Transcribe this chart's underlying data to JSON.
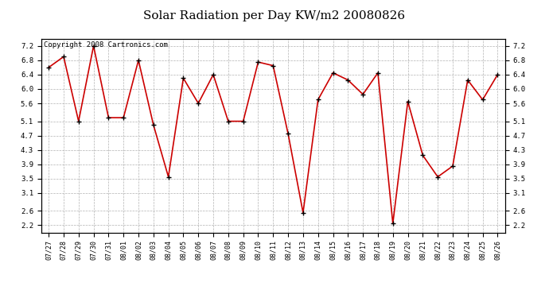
{
  "title": "Solar Radiation per Day KW/m2 20080826",
  "copyright_text": "Copyright 2008 Cartronics.com",
  "dates": [
    "07/27",
    "07/28",
    "07/29",
    "07/30",
    "07/31",
    "08/01",
    "08/02",
    "08/03",
    "08/04",
    "08/05",
    "08/06",
    "08/07",
    "08/08",
    "08/09",
    "08/10",
    "08/11",
    "08/12",
    "08/13",
    "08/14",
    "08/15",
    "08/16",
    "08/17",
    "08/18",
    "08/19",
    "08/20",
    "08/21",
    "08/22",
    "08/23",
    "08/24",
    "08/25",
    "08/26"
  ],
  "values": [
    6.6,
    6.9,
    5.1,
    7.2,
    5.2,
    5.2,
    6.8,
    5.0,
    3.55,
    6.3,
    5.6,
    6.4,
    5.1,
    5.1,
    6.75,
    6.65,
    4.75,
    2.55,
    5.7,
    6.45,
    6.25,
    5.85,
    6.45,
    2.25,
    5.65,
    4.15,
    3.55,
    3.85,
    6.25,
    5.7,
    6.4
  ],
  "line_color": "#cc0000",
  "marker_color": "#000000",
  "background_color": "#ffffff",
  "grid_color": "#aaaaaa",
  "ylim": [
    2.0,
    7.4
  ],
  "yticks": [
    2.2,
    2.6,
    3.1,
    3.5,
    3.9,
    4.3,
    4.7,
    5.1,
    5.6,
    6.0,
    6.4,
    6.8,
    7.2
  ],
  "title_fontsize": 11,
  "copyright_fontsize": 6.5,
  "tick_fontsize": 6.5,
  "xtick_fontsize": 6
}
